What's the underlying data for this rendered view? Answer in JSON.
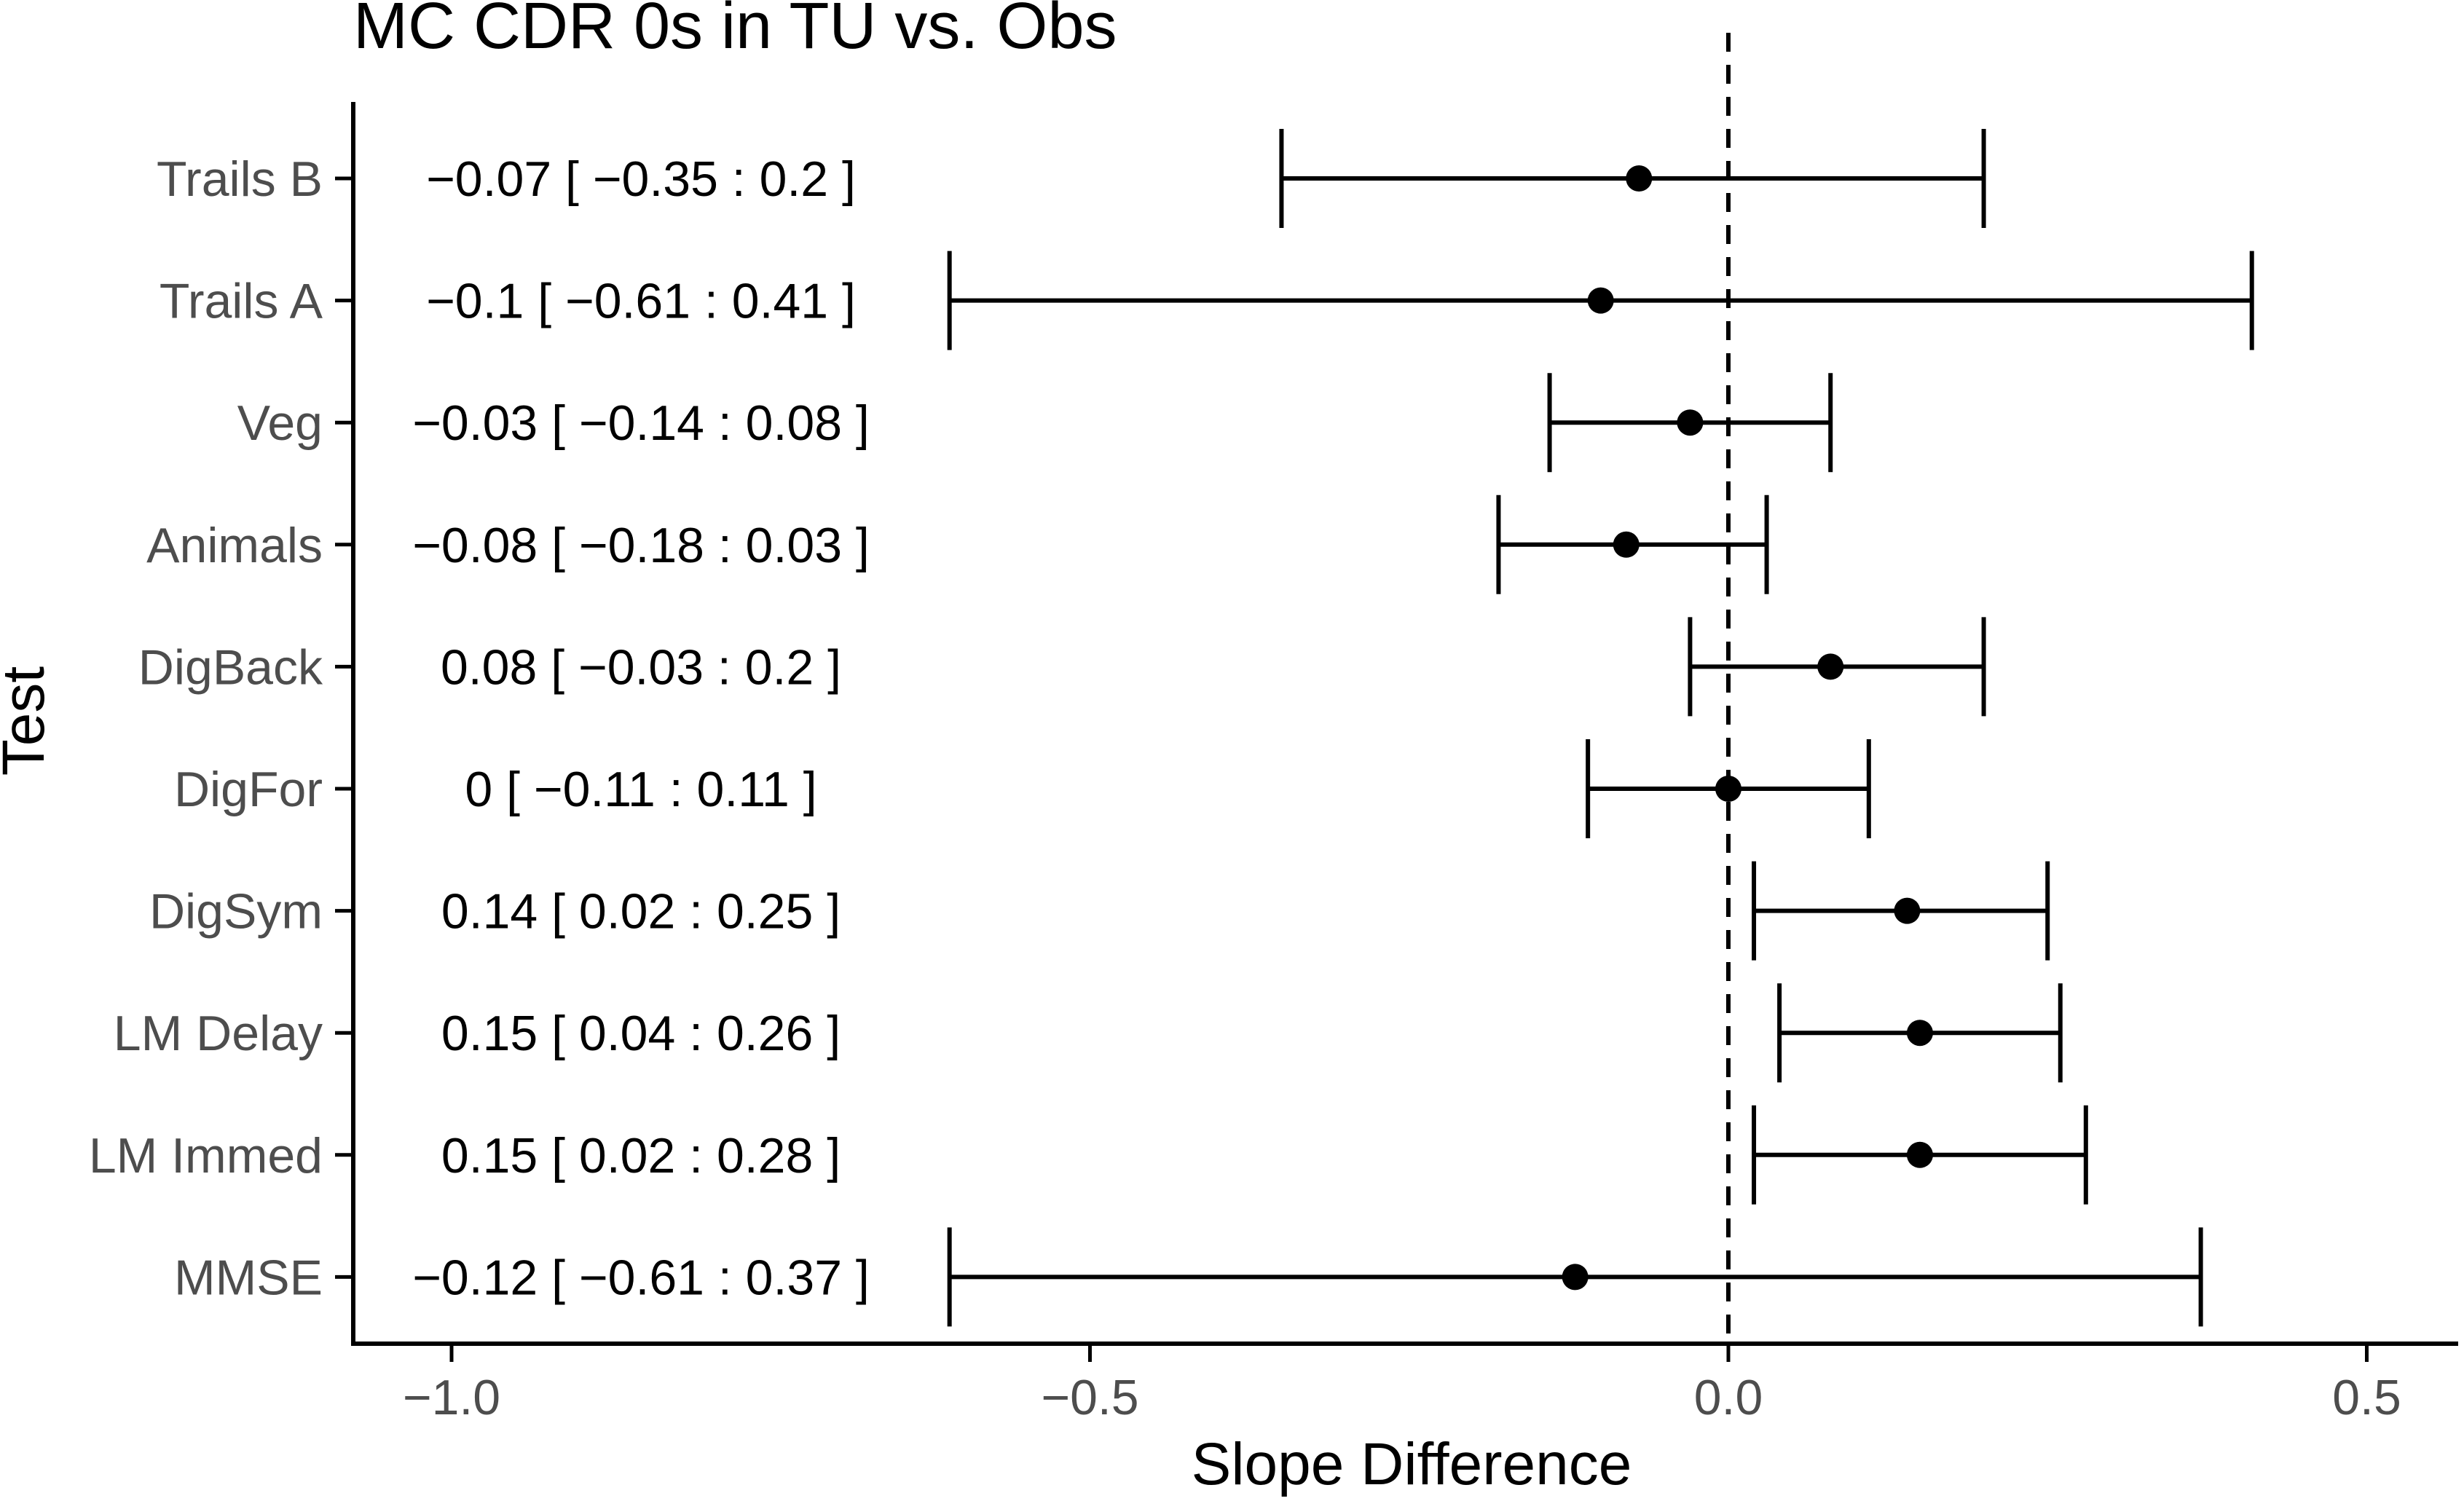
{
  "chart_data": {
    "type": "forest",
    "title": "MC CDR 0s in TU vs. Obs",
    "xlabel": "Slope Difference",
    "ylabel": "Test",
    "xlim": [
      -1.15,
      0.57
    ],
    "xticks": [
      -1.0,
      -0.5,
      0.0,
      0.5
    ],
    "xtick_labels": [
      "−1.0",
      "−0.5",
      "0.0",
      "0.5"
    ],
    "reference_line": 0,
    "grid": false,
    "rows": [
      {
        "test": "Trails B",
        "estimate": -0.07,
        "lower": -0.35,
        "upper": 0.2,
        "label": "−0.07  [ −0.35 : 0.2 ]"
      },
      {
        "test": "Trails A",
        "estimate": -0.1,
        "lower": -0.61,
        "upper": 0.41,
        "label": "−0.1  [ −0.61 : 0.41 ]"
      },
      {
        "test": "Veg",
        "estimate": -0.03,
        "lower": -0.14,
        "upper": 0.08,
        "label": "−0.03  [ −0.14 : 0.08 ]"
      },
      {
        "test": "Animals",
        "estimate": -0.08,
        "lower": -0.18,
        "upper": 0.03,
        "label": "−0.08  [ −0.18 : 0.03 ]"
      },
      {
        "test": "DigBack",
        "estimate": 0.08,
        "lower": -0.03,
        "upper": 0.2,
        "label": "0.08  [ −0.03 : 0.2 ]"
      },
      {
        "test": "DigFor",
        "estimate": 0,
        "lower": -0.11,
        "upper": 0.11,
        "label": "0  [ −0.11 : 0.11 ]"
      },
      {
        "test": "DigSym",
        "estimate": 0.14,
        "lower": 0.02,
        "upper": 0.25,
        "label": "0.14  [ 0.02 : 0.25 ]"
      },
      {
        "test": "LM Delay",
        "estimate": 0.15,
        "lower": 0.04,
        "upper": 0.26,
        "label": "0.15  [ 0.04 : 0.26 ]"
      },
      {
        "test": "LM Immed",
        "estimate": 0.15,
        "lower": 0.02,
        "upper": 0.28,
        "label": "0.15  [ 0.02 : 0.28 ]"
      },
      {
        "test": "MMSE",
        "estimate": -0.12,
        "lower": -0.61,
        "upper": 0.37,
        "label": "−0.12  [ −0.61 : 0.37 ]"
      }
    ]
  }
}
